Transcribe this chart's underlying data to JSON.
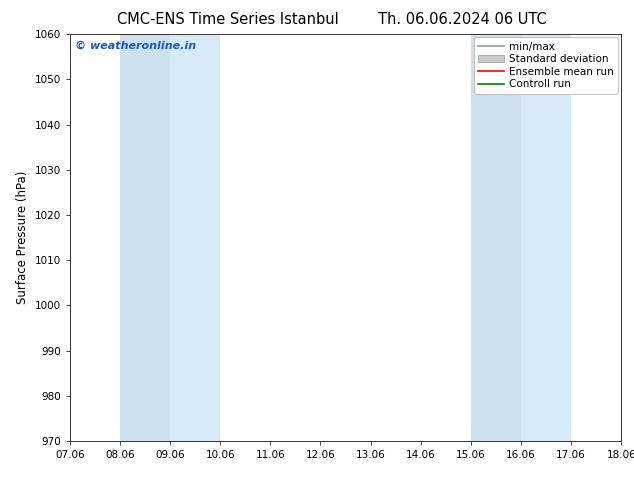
{
  "title_left": "CMC-ENS Time Series Istanbul",
  "title_right": "Th. 06.06.2024 06 UTC",
  "ylabel": "Surface Pressure (hPa)",
  "ylim": [
    970,
    1060
  ],
  "yticks": [
    970,
    980,
    990,
    1000,
    1010,
    1020,
    1030,
    1040,
    1050,
    1060
  ],
  "xtick_labels": [
    "07.06",
    "08.06",
    "09.06",
    "10.06",
    "11.06",
    "12.06",
    "13.06",
    "14.06",
    "15.06",
    "16.06",
    "17.06",
    "18.06"
  ],
  "xtick_positions": [
    0,
    1,
    2,
    3,
    4,
    5,
    6,
    7,
    8,
    9,
    10,
    11
  ],
  "shaded_bands": [
    {
      "x_start": 1.0,
      "x_end": 2.0,
      "color": "#cce0f0"
    },
    {
      "x_start": 2.0,
      "x_end": 3.0,
      "color": "#d8eaf8"
    },
    {
      "x_start": 8.0,
      "x_end": 9.0,
      "color": "#cce0f0"
    },
    {
      "x_start": 9.0,
      "x_end": 10.0,
      "color": "#d8eaf8"
    }
  ],
  "watermark": "© weatheronline.in",
  "watermark_color": "#1a56c4",
  "legend_items": [
    {
      "label": "min/max",
      "color": "#999999",
      "style": "line"
    },
    {
      "label": "Standard deviation",
      "color": "#cccccc",
      "style": "rect"
    },
    {
      "label": "Ensemble mean run",
      "color": "#ff0000",
      "style": "line"
    },
    {
      "label": "Controll run",
      "color": "#008800",
      "style": "line"
    }
  ],
  "background_color": "#ffffff",
  "plot_bg_color": "#ffffff",
  "font_size_title": 10.5,
  "font_size_axis": 8.5,
  "font_size_ticks": 7.5,
  "font_size_legend": 7.5,
  "font_size_watermark": 8
}
